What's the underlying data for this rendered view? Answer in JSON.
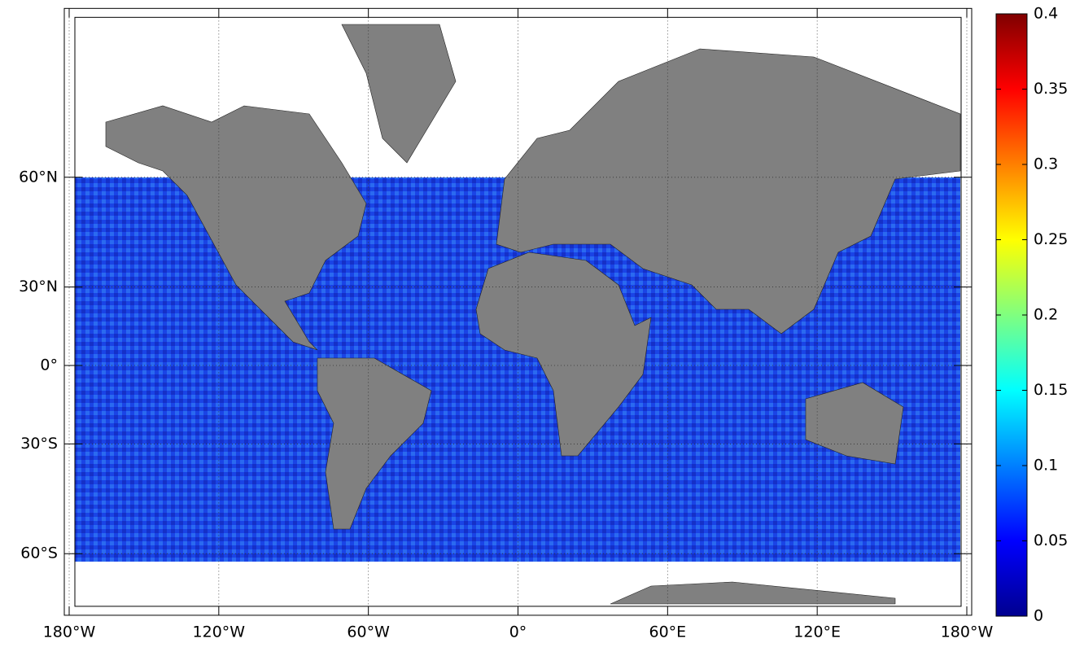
{
  "map": {
    "projection": "mercator",
    "lonlim": [
      -180,
      180
    ],
    "latlim": [
      -69,
      80
    ],
    "grid": true,
    "lonticks": [
      {
        "value": -180,
        "label": "180°W"
      },
      {
        "value": -120,
        "label": "120°W"
      },
      {
        "value": -60,
        "label": "60°W"
      },
      {
        "value": 0,
        "label": "0°"
      },
      {
        "value": 60,
        "label": "60°E"
      },
      {
        "value": 120,
        "label": "120°E"
      },
      {
        "value": 180,
        "label": "180°W"
      }
    ],
    "latticks": [
      {
        "value": 60,
        "label": "60°N"
      },
      {
        "value": 30,
        "label": "30°N"
      },
      {
        "value": 0,
        "label": "0°"
      },
      {
        "value": -30,
        "label": "30°S"
      },
      {
        "value": -60,
        "label": "60°S"
      }
    ]
  },
  "colorbar": {
    "colormap": "jet",
    "clim": [
      0,
      0.4
    ],
    "ticks": [
      0,
      0.05,
      0.1,
      0.15,
      0.2,
      0.25,
      0.3,
      0.35,
      0.4
    ]
  }
}
